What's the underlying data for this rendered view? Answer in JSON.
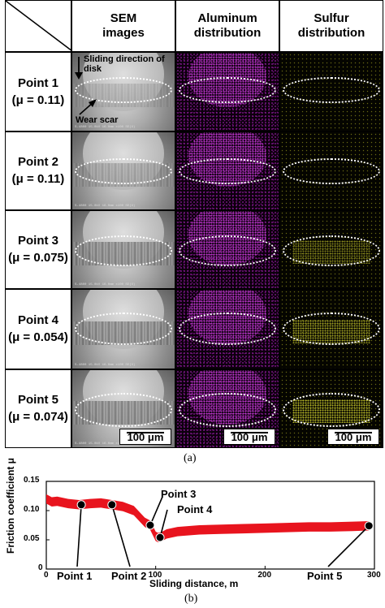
{
  "figure_a": {
    "headers": [
      {
        "line1": "SEM",
        "line2": "images"
      },
      {
        "line1": "Aluminum",
        "line2": "distribution"
      },
      {
        "line1": "Sulfur",
        "line2": "distribution"
      }
    ],
    "rows": [
      {
        "point": "Point 1",
        "mu": "(μ = 0.11)"
      },
      {
        "point": "Point 2",
        "mu": "(μ = 0.11)"
      },
      {
        "point": "Point 3",
        "mu": "(μ = 0.075)"
      },
      {
        "point": "Point 4",
        "mu": "(μ = 0.054)"
      },
      {
        "point": "Point 5",
        "mu": "(μ = 0.074)"
      }
    ],
    "annotations": {
      "sliding_line1": "Sliding direction of",
      "sliding_line2": "disk",
      "wear_scar": "Wear scar"
    },
    "scale_bar": "100 μm",
    "caption": "(a)"
  },
  "chart_data": {
    "type": "line",
    "ylabel": "Friction coefficient μ",
    "xlabel": "Sliding distance, m",
    "xlim": [
      0,
      300
    ],
    "ylim": [
      0,
      0.15
    ],
    "x_ticks": [
      "0",
      "100",
      "200",
      "300"
    ],
    "y_ticks": [
      "0",
      "0.05",
      "0.10",
      "0.15"
    ],
    "series_color": "#e8141e",
    "series": [
      {
        "x": [
          0,
          5,
          10,
          20,
          30,
          40,
          50,
          60,
          70,
          80,
          90,
          95,
          100,
          102,
          105,
          110,
          120,
          140,
          160,
          180,
          200,
          220,
          240,
          260,
          280,
          295
        ],
        "y": [
          0.12,
          0.115,
          0.116,
          0.112,
          0.11,
          0.112,
          0.113,
          0.11,
          0.107,
          0.1,
          0.08,
          0.075,
          0.056,
          0.054,
          0.055,
          0.06,
          0.064,
          0.067,
          0.068,
          0.069,
          0.07,
          0.071,
          0.072,
          0.072,
          0.073,
          0.074
        ],
        "band": 0.008
      }
    ],
    "points": [
      {
        "label": "Point 1",
        "x": 32,
        "y": 0.11
      },
      {
        "label": "Point 2",
        "x": 60,
        "y": 0.11
      },
      {
        "label": "Point 3",
        "x": 95,
        "y": 0.075
      },
      {
        "label": "Point 4",
        "x": 104,
        "y": 0.054
      },
      {
        "label": "Point 5",
        "x": 295,
        "y": 0.074
      }
    ],
    "caption": "(b)"
  }
}
